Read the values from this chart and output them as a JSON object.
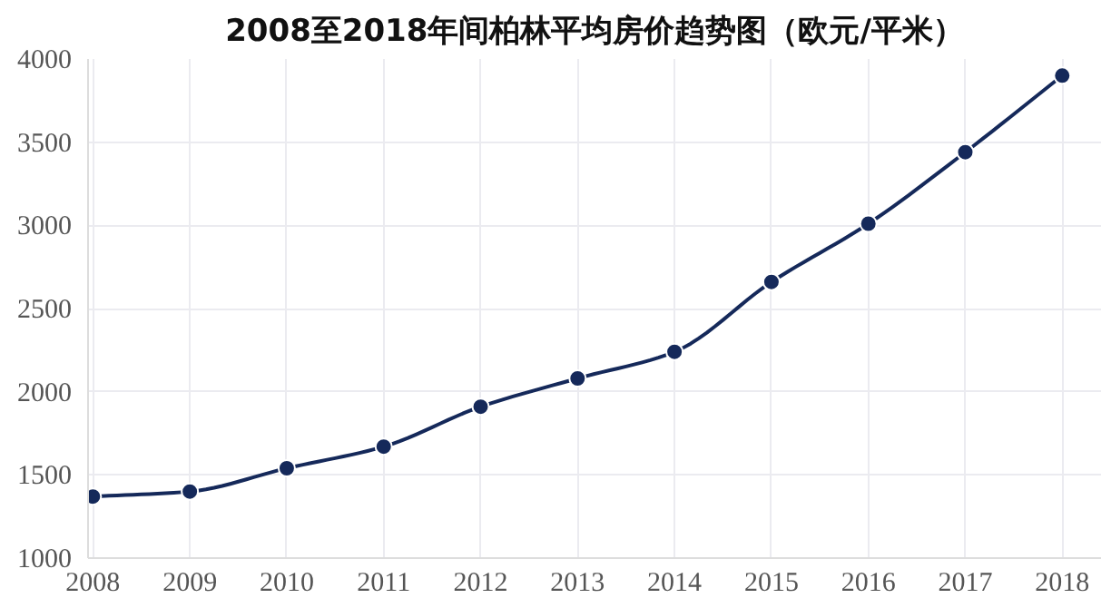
{
  "chart_data": {
    "type": "line",
    "title": "2008至2018年间柏林平均房价趋势图（欧元/平米）",
    "categories": [
      "2008",
      "2009",
      "2010",
      "2011",
      "2012",
      "2013",
      "2014",
      "2015",
      "2016",
      "2017",
      "2018"
    ],
    "series": [
      {
        "color": "#15295a",
        "values": [
          1370,
          1400,
          1540,
          1670,
          1910,
          2080,
          2240,
          2660,
          3010,
          3440,
          3900
        ]
      }
    ],
    "ylim": [
      1000,
      4000
    ],
    "yticks": [
      1000,
      1500,
      2000,
      2500,
      3000,
      3500,
      4000
    ],
    "grid": true,
    "marker": "circle",
    "line_style": "solid"
  }
}
